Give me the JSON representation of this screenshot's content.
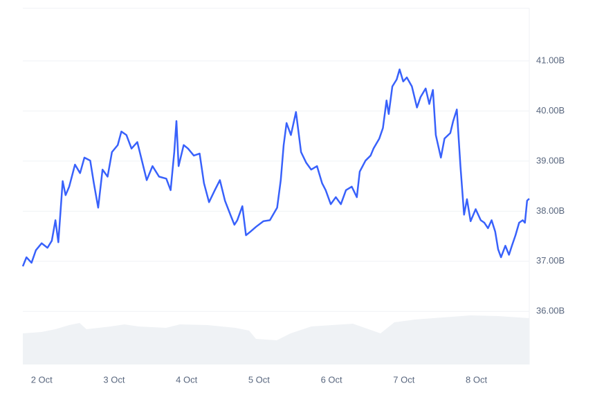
{
  "chart_data": {
    "type": "line",
    "x": [
      -0.26,
      -0.21,
      -0.14,
      -0.08,
      0,
      0.08,
      0.14,
      0.19,
      0.23,
      0.29,
      0.33,
      0.38,
      0.46,
      0.53,
      0.59,
      0.67,
      0.72,
      0.78,
      0.84,
      0.91,
      0.97,
      1.05,
      1.1,
      1.17,
      1.24,
      1.32,
      1.39,
      1.45,
      1.53,
      1.62,
      1.72,
      1.78,
      1.83,
      1.86,
      1.89,
      1.96,
      2.02,
      2.1,
      2.18,
      2.24,
      2.31,
      2.39,
      2.46,
      2.53,
      2.61,
      2.66,
      2.7,
      2.77,
      2.82,
      2.88,
      2.96,
      3.06,
      3.15,
      3.25,
      3.3,
      3.34,
      3.38,
      3.44,
      3.51,
      3.58,
      3.65,
      3.72,
      3.8,
      3.87,
      3.92,
      3.99,
      4.06,
      4.13,
      4.2,
      4.28,
      4.35,
      4.39,
      4.47,
      4.54,
      4.58,
      4.66,
      4.71,
      4.76,
      4.79,
      4.84,
      4.9,
      4.94,
      4.99,
      5.04,
      5.11,
      5.18,
      5.23,
      5.3,
      5.35,
      5.4,
      5.44,
      5.51,
      5.56,
      5.64,
      5.68,
      5.73,
      5.78,
      5.83,
      5.87,
      5.92,
      5.99,
      6.06,
      6.11,
      6.16,
      6.21,
      6.26,
      6.3,
      6.34,
      6.4,
      6.45,
      6.49,
      6.54,
      6.59,
      6.64,
      6.67,
      6.7,
      6.73
    ],
    "series": [
      {
        "color": "#3861fb",
        "values": [
          36.9,
          37.08,
          36.97,
          37.22,
          37.36,
          37.27,
          37.41,
          37.82,
          37.38,
          38.6,
          38.32,
          38.49,
          38.93,
          38.76,
          39.07,
          39.01,
          38.56,
          38.07,
          38.83,
          38.69,
          39.18,
          39.32,
          39.59,
          39.52,
          39.25,
          39.38,
          38.97,
          38.62,
          38.9,
          38.69,
          38.65,
          38.42,
          39.18,
          39.8,
          38.9,
          39.32,
          39.25,
          39.11,
          39.15,
          38.56,
          38.18,
          38.42,
          38.62,
          38.21,
          37.91,
          37.73,
          37.82,
          38.1,
          37.52,
          37.59,
          37.69,
          37.8,
          37.82,
          38.07,
          38.62,
          39.32,
          39.76,
          39.52,
          39.98,
          39.18,
          38.97,
          38.83,
          38.9,
          38.56,
          38.42,
          38.14,
          38.28,
          38.14,
          38.42,
          38.49,
          38.28,
          38.79,
          39.01,
          39.11,
          39.25,
          39.45,
          39.66,
          40.21,
          39.94,
          40.49,
          40.63,
          40.83,
          40.59,
          40.67,
          40.49,
          40.07,
          40.28,
          40.45,
          40.14,
          40.42,
          39.52,
          39.07,
          39.45,
          39.56,
          39.8,
          40.03,
          38.9,
          37.93,
          38.24,
          37.8,
          38.04,
          37.82,
          37.77,
          37.66,
          37.82,
          37.59,
          37.24,
          37.08,
          37.31,
          37.13,
          37.31,
          37.52,
          37.77,
          37.82,
          37.77,
          38.21,
          38.25
        ]
      }
    ],
    "xlim": [
      -0.26,
      6.73
    ],
    "xticks": [
      {
        "value": 0,
        "label": "2 Oct"
      },
      {
        "value": 1,
        "label": "3 Oct"
      },
      {
        "value": 2,
        "label": "4 Oct"
      },
      {
        "value": 3,
        "label": "5 Oct"
      },
      {
        "value": 4,
        "label": "6 Oct"
      },
      {
        "value": 5,
        "label": "7 Oct"
      },
      {
        "value": 6,
        "label": "8 Oct"
      }
    ],
    "ylim": [
      34.94,
      42.05
    ],
    "yticks": [
      {
        "value": 36,
        "label": "36.00B"
      },
      {
        "value": 37,
        "label": "37.00B"
      },
      {
        "value": 38,
        "label": "38.00B"
      },
      {
        "value": 39,
        "label": "39.00B"
      },
      {
        "value": 40,
        "label": "40.00B"
      },
      {
        "value": 41,
        "label": "41.00B"
      }
    ],
    "grid": true
  }
}
